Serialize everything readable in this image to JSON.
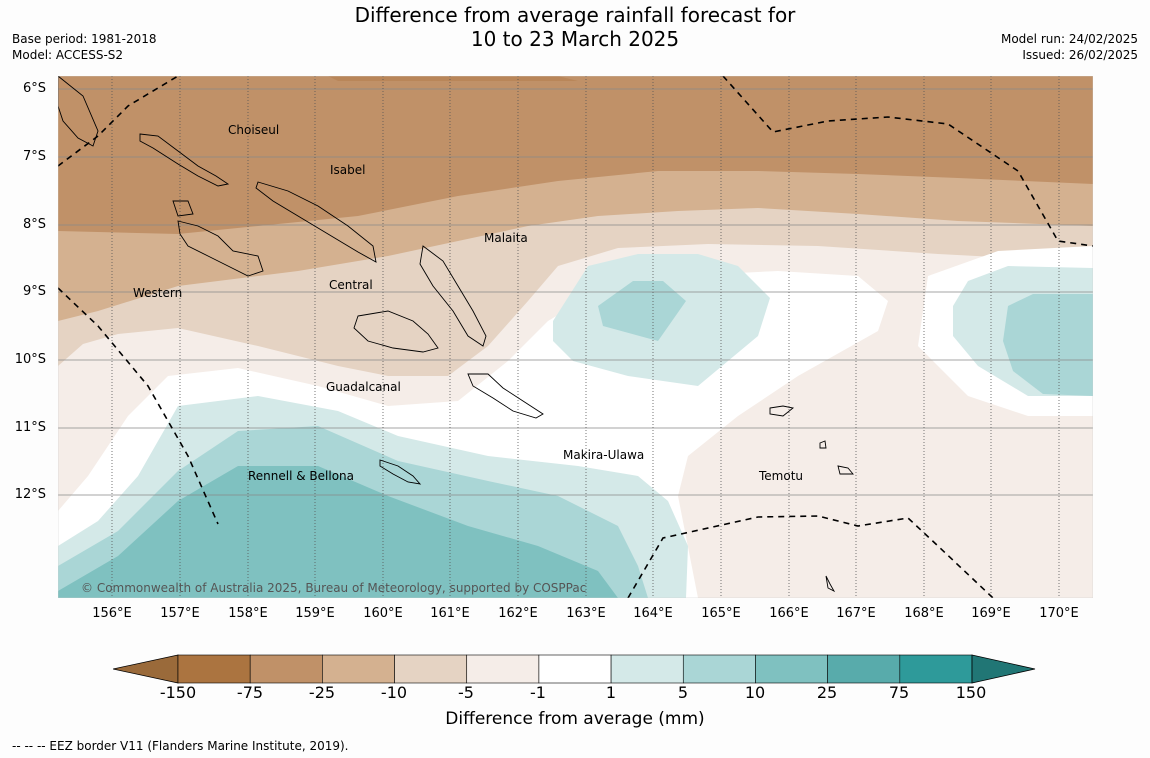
{
  "title_line1": "Difference from average rainfall forecast for",
  "title_line2": "10 to 23 March 2025",
  "meta_left": {
    "base_period": "Base period: 1981-2018",
    "model": "Model: ACCESS-S2"
  },
  "meta_right": {
    "model_run": "Model run: 24/02/2025",
    "issued": "Issued: 26/02/2025"
  },
  "latitude_ticks": [
    "6°S",
    "7°S",
    "8°S",
    "9°S",
    "10°S",
    "11°S",
    "12°S"
  ],
  "longitude_ticks": [
    "156°E",
    "157°E",
    "158°E",
    "159°E",
    "160°E",
    "161°E",
    "162°E",
    "163°E",
    "164°E",
    "165°E",
    "166°E",
    "167°E",
    "168°E",
    "169°E",
    "170°E"
  ],
  "places": {
    "choiseul": "Choiseul",
    "isabel": "Isabel",
    "malaita": "Malaita",
    "western": "Western",
    "central": "Central",
    "guadalcanal": "Guadalcanal",
    "makira": "Makira-Ulawa",
    "rennell": "Rennell & Bellona",
    "temotu": "Temotu"
  },
  "copyright": "© Commonwealth of Australia 2025, Bureau of Meteorology, supported by COSPPac",
  "colorbar": {
    "ticks": [
      "-150",
      "-75",
      "-25",
      "-10",
      "-5",
      "-1",
      "1",
      "5",
      "10",
      "25",
      "75",
      "150"
    ],
    "colors": [
      "#9a6a3a",
      "#ab7440",
      "#c09168",
      "#d4b190",
      "#e5d3c3",
      "#f5ede8",
      "#ffffff",
      "#d4e9e8",
      "#aad6d6",
      "#7fc1c0",
      "#58abab",
      "#2e9a9a",
      "#217675"
    ],
    "label": "Difference from average (mm)"
  },
  "eez_note": "--  --  -- EEZ border V11 (Flanders Marine Institute, 2019)."
}
